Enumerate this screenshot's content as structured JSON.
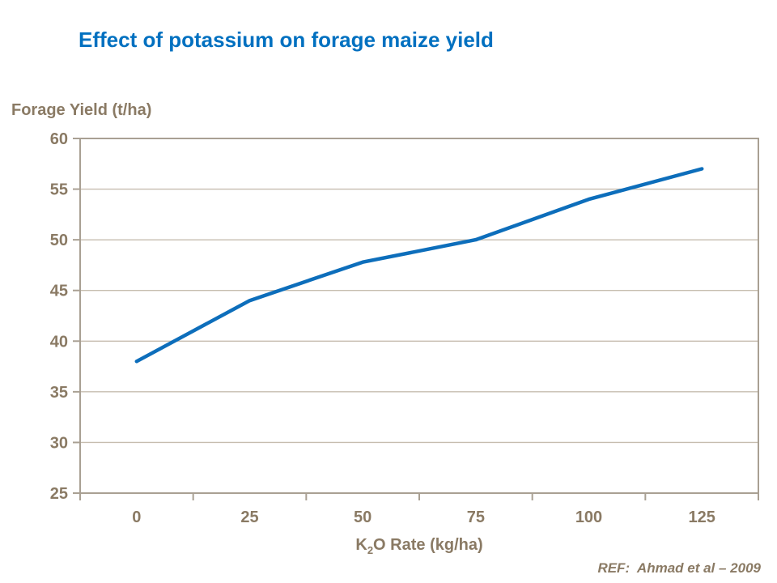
{
  "page": {
    "title": "Effect of potassium on forage maize yield",
    "reference": "REF:  Ahmad et al – 2009"
  },
  "axes": {
    "y_title": "Forage Yield (t/ha)",
    "x_title_parts": {
      "main": "K",
      "sub": "2",
      "rest": "O Rate (kg/ha)"
    }
  },
  "colors": {
    "title_blue": "#0070C0",
    "line_blue": "#0D6EBB",
    "text_brown": "#8A7A64",
    "grid_taupe": "#C6BDAF",
    "axis_taupe": "#A9A093",
    "background": "#FFFFFF"
  },
  "chart_data": {
    "type": "line",
    "title": "Effect of potassium on forage maize yield",
    "xlabel": "K2O Rate (kg/ha)",
    "ylabel": "Forage Yield (t/ha)",
    "categories": [
      0,
      25,
      50,
      75,
      100,
      125
    ],
    "x_tick_labels": [
      "0",
      "25",
      "50",
      "75",
      "100",
      "125"
    ],
    "series": [
      {
        "name": "Forage yield",
        "values": [
          38,
          44,
          47.8,
          50,
          54,
          57
        ]
      }
    ],
    "ylim": [
      25,
      60
    ],
    "yticks": [
      25,
      30,
      35,
      40,
      45,
      50,
      55,
      60
    ],
    "y_tick_labels": [
      "25",
      "30",
      "35",
      "40",
      "45",
      "50",
      "55",
      "60"
    ],
    "grid": "horizontal-only",
    "plot_border": true,
    "legend": "none",
    "annotations": [
      "REF:  Ahmad et al – 2009"
    ]
  }
}
